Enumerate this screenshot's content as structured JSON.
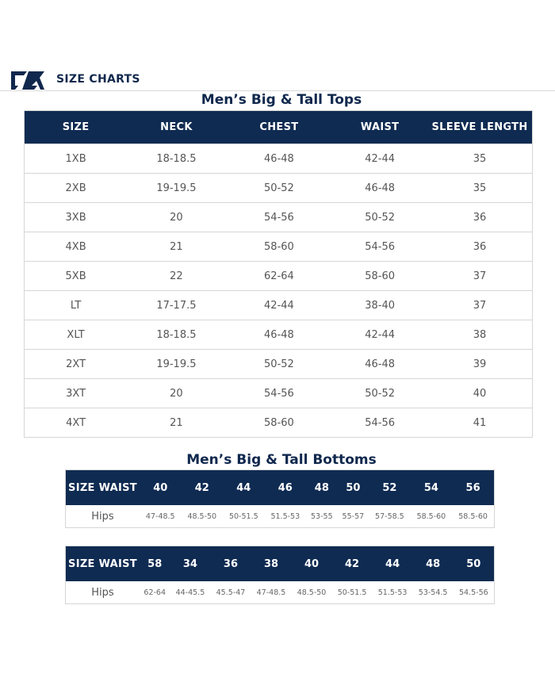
{
  "header": {
    "brand": "SIZE CHARTS",
    "logo": "cutter-buck-logo",
    "accent": "#0f2b52"
  },
  "tops": {
    "title": "Men’s Big & Tall Tops",
    "columns": [
      "SIZE",
      "NECK",
      "CHEST",
      "WAIST",
      "SLEEVE LENGTH"
    ],
    "rows": [
      [
        "1XB",
        "18-18.5",
        "46-48",
        "42-44",
        "35"
      ],
      [
        "2XB",
        "19-19.5",
        "50-52",
        "46-48",
        "35"
      ],
      [
        "3XB",
        "20",
        "54-56",
        "50-52",
        "36"
      ],
      [
        "4XB",
        "21",
        "58-60",
        "54-56",
        "36"
      ],
      [
        "5XB",
        "22",
        "62-64",
        "58-60",
        "37"
      ],
      [
        "LT",
        "17-17.5",
        "42-44",
        "38-40",
        "37"
      ],
      [
        "XLT",
        "18-18.5",
        "46-48",
        "42-44",
        "38"
      ],
      [
        "2XT",
        "19-19.5",
        "50-52",
        "46-48",
        "39"
      ],
      [
        "3XT",
        "20",
        "54-56",
        "50-52",
        "40"
      ],
      [
        "4XT",
        "21",
        "58-60",
        "54-56",
        "41"
      ]
    ]
  },
  "bottoms": {
    "title": "Men’s Big & Tall Bottoms",
    "tables": [
      {
        "header": "SIZE WAIST",
        "row_label": "Hips",
        "sizes": [
          "40",
          "42",
          "44",
          "46",
          "48",
          "50",
          "52",
          "54",
          "56"
        ],
        "hips": [
          "47-48.5",
          "48.5-50",
          "50-51.5",
          "51.5-53",
          "53-55",
          "55-57",
          "57-58.5",
          "58.5-60",
          "58.5-60"
        ]
      },
      {
        "header": "SIZE WAIST",
        "row_label": "Hips",
        "sizes": [
          "58",
          "34",
          "36",
          "38",
          "40",
          "42",
          "44",
          "48",
          "50"
        ],
        "hips": [
          "62-64",
          "44-45.5",
          "45.5-47",
          "47-48.5",
          "48.5-50",
          "50-51.5",
          "51.5-53",
          "53-54.5",
          "54.5-56"
        ]
      }
    ]
  }
}
